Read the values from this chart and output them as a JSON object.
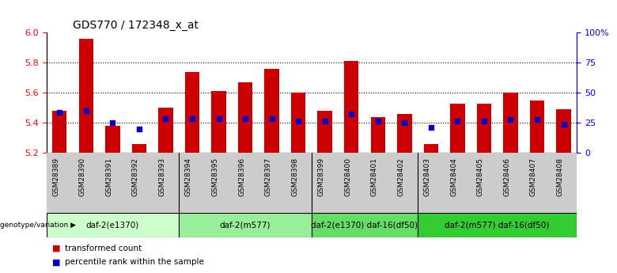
{
  "title": "GDS770 / 172348_x_at",
  "samples": [
    "GSM28389",
    "GSM28390",
    "GSM28391",
    "GSM28392",
    "GSM28393",
    "GSM28394",
    "GSM28395",
    "GSM28396",
    "GSM28397",
    "GSM28398",
    "GSM28399",
    "GSM28400",
    "GSM28401",
    "GSM28402",
    "GSM28403",
    "GSM28404",
    "GSM28405",
    "GSM28406",
    "GSM28407",
    "GSM28408"
  ],
  "bar_tops": [
    5.48,
    5.96,
    5.38,
    5.26,
    5.5,
    5.74,
    5.61,
    5.67,
    5.76,
    5.6,
    5.48,
    5.81,
    5.44,
    5.46,
    5.26,
    5.53,
    5.53,
    5.6,
    5.55,
    5.49
  ],
  "bar_base": 5.2,
  "blue_y": [
    5.47,
    5.48,
    5.4,
    5.36,
    5.43,
    5.43,
    5.43,
    5.43,
    5.43,
    5.41,
    5.41,
    5.46,
    5.41,
    5.4,
    5.37,
    5.41,
    5.41,
    5.42,
    5.42,
    5.39
  ],
  "ylim": [
    5.2,
    6.0
  ],
  "yticks": [
    5.2,
    5.4,
    5.6,
    5.8,
    6.0
  ],
  "right_yticks_vals": [
    0,
    25,
    50,
    75,
    100
  ],
  "right_ytick_labels": [
    "0",
    "25",
    "50",
    "75",
    "100%"
  ],
  "bar_color": "#cc0000",
  "blue_color": "#0000cc",
  "title_fontsize": 10,
  "group_spans": [
    {
      "start": 0,
      "end": 5,
      "label": "daf-2(e1370)",
      "color": "#ccffcc"
    },
    {
      "start": 5,
      "end": 10,
      "label": "daf-2(m577)",
      "color": "#99ee99"
    },
    {
      "start": 10,
      "end": 14,
      "label": "daf-2(e1370) daf-16(df50)",
      "color": "#66dd66"
    },
    {
      "start": 14,
      "end": 20,
      "label": "daf-2(m577) daf-16(df50)",
      "color": "#33cc33"
    }
  ],
  "group_row_label": "genotype/variation",
  "legend_items": [
    {
      "label": "transformed count",
      "color": "#cc0000"
    },
    {
      "label": "percentile rank within the sample",
      "color": "#0000cc"
    }
  ]
}
